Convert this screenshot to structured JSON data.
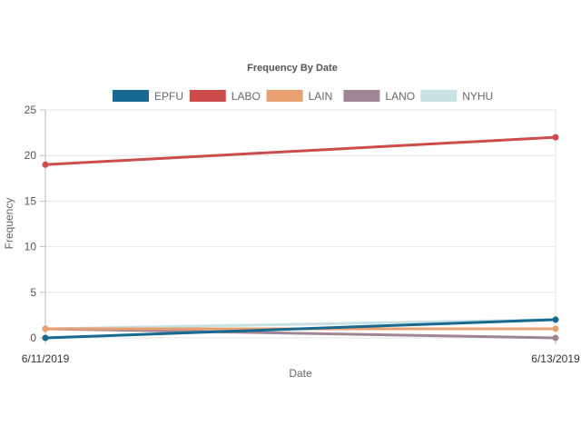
{
  "chart_data": {
    "type": "line",
    "title": "Frequency By Date",
    "xlabel": "Date",
    "ylabel": "Frequency",
    "x": [
      "6/11/2019",
      "6/13/2019"
    ],
    "ylim": [
      0,
      25
    ],
    "yticks": [
      0,
      5,
      10,
      15,
      20,
      25
    ],
    "grid": true,
    "legend_position": "top",
    "series": [
      {
        "name": "EPFU",
        "color": "#17698f",
        "values": [
          0,
          2
        ]
      },
      {
        "name": "LABO",
        "color": "#cc4b4b",
        "values": [
          19,
          22
        ]
      },
      {
        "name": "LAIN",
        "color": "#e9a070",
        "values": [
          1,
          1
        ]
      },
      {
        "name": "LANO",
        "color": "#a08596",
        "values": [
          1,
          0
        ]
      },
      {
        "name": "NYHU",
        "color": "#c8e1e7",
        "values": [
          1,
          2
        ]
      }
    ]
  }
}
